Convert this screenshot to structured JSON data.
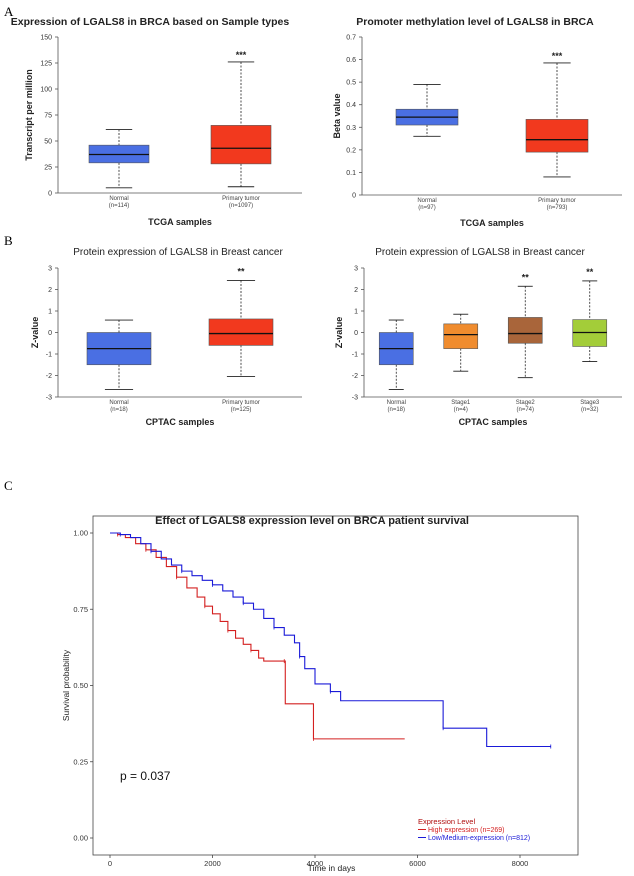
{
  "panel_labels": [
    "A",
    "B",
    "C"
  ],
  "chart_data": [
    {
      "type": "box",
      "title": "Expression of LGALS8 in BRCA based on Sample types",
      "xlabel": "TCGA samples",
      "ylabel": "Transcript per million",
      "ylim": [
        0,
        150
      ],
      "yticks": [
        "0",
        "25",
        "50",
        "75",
        "100",
        "125",
        "150"
      ],
      "groups": [
        {
          "label": "Normal",
          "n": "(n=114)",
          "min": 5,
          "q1": 29,
          "median": 37,
          "q3": 46,
          "max": 61,
          "color": "#4a6fe3",
          "sig": ""
        },
        {
          "label": "Primary tumor",
          "n": "(n=1097)",
          "min": 6,
          "q1": 28,
          "median": 43,
          "q3": 65,
          "max": 126,
          "color": "#f2391e",
          "sig": "***"
        }
      ]
    },
    {
      "type": "box",
      "title": "Promoter methylation level of LGALS8 in BRCA",
      "xlabel": "TCGA samples",
      "ylabel": "Beta value",
      "ylim": [
        0,
        0.7
      ],
      "yticks": [
        "0",
        "0.1",
        "0.2",
        "0.3",
        "0.4",
        "0.5",
        "0.6",
        "0.7"
      ],
      "groups": [
        {
          "label": "Normal",
          "n": "(n=97)",
          "min": 0.26,
          "q1": 0.31,
          "median": 0.345,
          "q3": 0.38,
          "max": 0.49,
          "color": "#4a6fe3",
          "sig": ""
        },
        {
          "label": "Primary tumor",
          "n": "(n=793)",
          "min": 0.08,
          "q1": 0.19,
          "median": 0.245,
          "q3": 0.335,
          "max": 0.585,
          "color": "#f2391e",
          "sig": "***"
        }
      ]
    },
    {
      "type": "box",
      "title": "Protein expression of LGALS8 in Breast cancer",
      "xlabel": "CPTAC samples",
      "ylabel": "Z-value",
      "ylim": [
        -3,
        3
      ],
      "yticks": [
        "-3",
        "-2",
        "-1",
        "0",
        "1",
        "2",
        "3"
      ],
      "groups": [
        {
          "label": "Normal",
          "n": "(n=18)",
          "min": -2.65,
          "q1": -1.5,
          "median": -0.75,
          "q3": 0.0,
          "max": 0.58,
          "color": "#4a6fe3",
          "sig": ""
        },
        {
          "label": "Primary tumor",
          "n": "(n=125)",
          "min": -2.05,
          "q1": -0.6,
          "median": -0.05,
          "q3": 0.63,
          "max": 2.42,
          "color": "#f2391e",
          "sig": "**"
        }
      ]
    },
    {
      "type": "box",
      "title": "Protein expression of LGALS8 in Breast cancer",
      "xlabel": "CPTAC samples",
      "ylabel": "Z-value",
      "ylim": [
        -3,
        3
      ],
      "yticks": [
        "-3",
        "-2",
        "-1",
        "0",
        "1",
        "2",
        "3"
      ],
      "groups": [
        {
          "label": "Normal",
          "n": "(n=18)",
          "min": -2.65,
          "q1": -1.5,
          "median": -0.75,
          "q3": 0.0,
          "max": 0.58,
          "color": "#4a6fe3",
          "sig": ""
        },
        {
          "label": "Stage1",
          "n": "(n=4)",
          "min": -1.8,
          "q1": -0.75,
          "median": -0.1,
          "q3": 0.4,
          "max": 0.85,
          "color": "#f08c2e",
          "sig": ""
        },
        {
          "label": "Stage2",
          "n": "(n=74)",
          "min": -2.1,
          "q1": -0.5,
          "median": -0.05,
          "q3": 0.7,
          "max": 2.15,
          "color": "#a9653a",
          "sig": "**"
        },
        {
          "label": "Stage3",
          "n": "(n=32)",
          "min": -1.35,
          "q1": -0.65,
          "median": 0.0,
          "q3": 0.6,
          "max": 2.4,
          "color": "#a3cd39",
          "sig": "**"
        }
      ]
    },
    {
      "type": "line",
      "title": "Effect of LGALS8 expression level on BRCA patient survival",
      "xlabel": "Time in days",
      "ylabel": "Survival probability",
      "xlim": [
        0,
        8800
      ],
      "ylim": [
        0,
        1
      ],
      "xticks": [
        "0",
        "2000",
        "4000",
        "6000",
        "8000"
      ],
      "yticks": [
        "0.00",
        "0.25",
        "0.50",
        "0.75",
        "1.00"
      ],
      "pvalue": "p = 0.037",
      "legend_title": "Expression Level",
      "series": [
        {
          "name": "High expression (n=269)",
          "color": "#d42020",
          "points": [
            [
              0,
              1.0
            ],
            [
              150,
              0.995
            ],
            [
              300,
              0.985
            ],
            [
              500,
              0.965
            ],
            [
              700,
              0.945
            ],
            [
              900,
              0.92
            ],
            [
              1100,
              0.89
            ],
            [
              1300,
              0.855
            ],
            [
              1500,
              0.82
            ],
            [
              1700,
              0.79
            ],
            [
              1850,
              0.76
            ],
            [
              2000,
              0.735
            ],
            [
              2150,
              0.71
            ],
            [
              2300,
              0.68
            ],
            [
              2450,
              0.655
            ],
            [
              2600,
              0.635
            ],
            [
              2750,
              0.615
            ],
            [
              2900,
              0.59
            ],
            [
              3000,
              0.58
            ],
            [
              3400,
              0.58
            ],
            [
              3420,
              0.44
            ],
            [
              3950,
              0.44
            ],
            [
              3970,
              0.325
            ],
            [
              5750,
              0.325
            ]
          ]
        },
        {
          "name": "Low/Medium-expression (n=812)",
          "color": "#1a1ad8",
          "points": [
            [
              0,
              1.0
            ],
            [
              200,
              0.995
            ],
            [
              400,
              0.985
            ],
            [
              600,
              0.965
            ],
            [
              800,
              0.94
            ],
            [
              1000,
              0.915
            ],
            [
              1200,
              0.895
            ],
            [
              1400,
              0.875
            ],
            [
              1600,
              0.86
            ],
            [
              1800,
              0.845
            ],
            [
              2000,
              0.83
            ],
            [
              2200,
              0.81
            ],
            [
              2400,
              0.79
            ],
            [
              2600,
              0.77
            ],
            [
              2800,
              0.75
            ],
            [
              3000,
              0.72
            ],
            [
              3200,
              0.69
            ],
            [
              3400,
              0.665
            ],
            [
              3600,
              0.64
            ],
            [
              3700,
              0.595
            ],
            [
              3800,
              0.555
            ],
            [
              4000,
              0.505
            ],
            [
              4300,
              0.48
            ],
            [
              4500,
              0.45
            ],
            [
              6350,
              0.45
            ],
            [
              6500,
              0.36
            ],
            [
              7200,
              0.36
            ],
            [
              7350,
              0.3
            ],
            [
              8600,
              0.3
            ]
          ]
        }
      ]
    }
  ]
}
